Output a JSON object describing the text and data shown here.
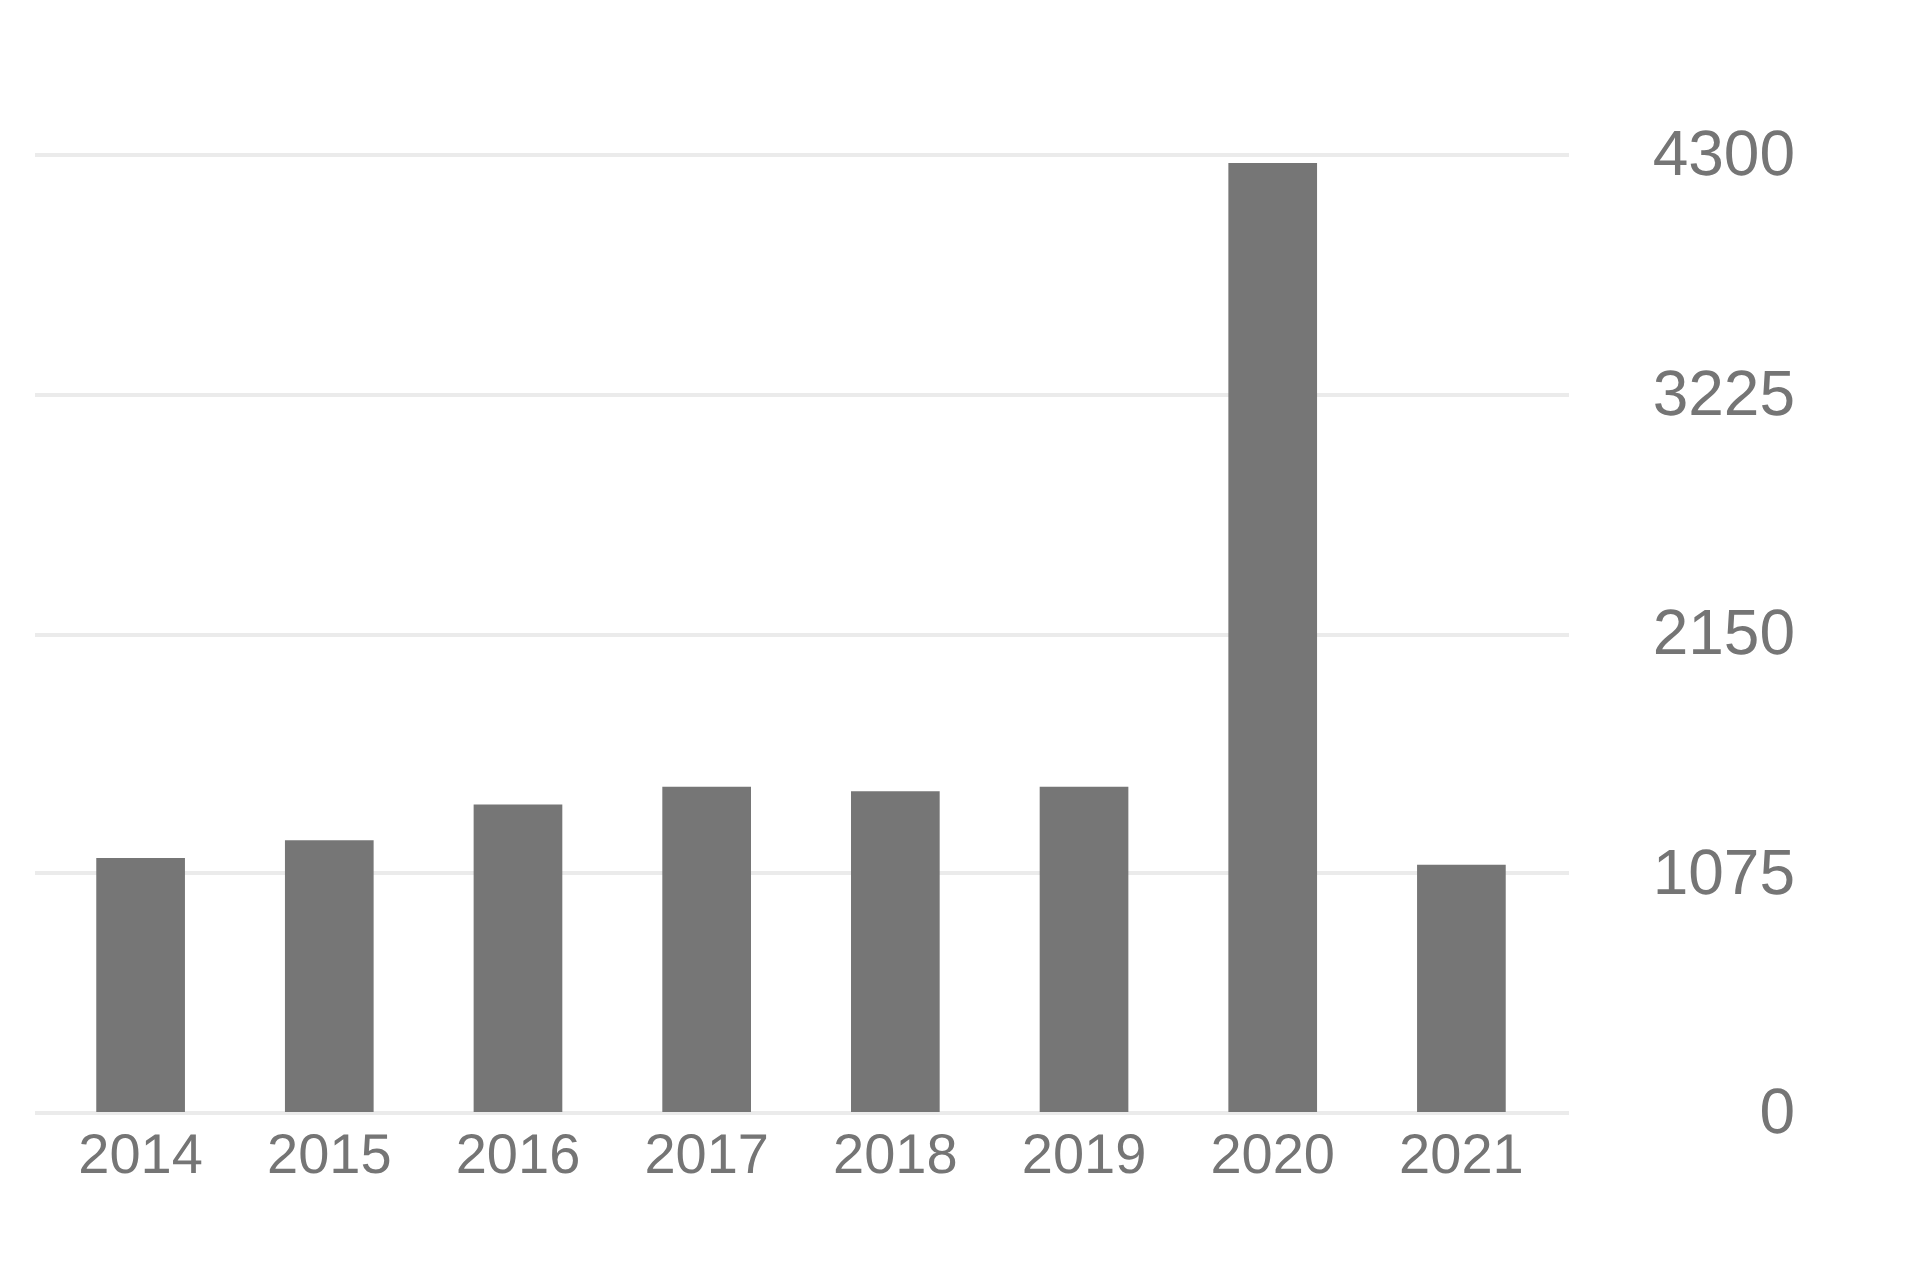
{
  "chart_data": {
    "type": "bar",
    "categories": [
      "2014",
      "2015",
      "2016",
      "2017",
      "2018",
      "2019",
      "2020",
      "2021"
    ],
    "values": [
      1140,
      1220,
      1380,
      1460,
      1440,
      1460,
      4260,
      1110
    ],
    "color": "#767676",
    "ylim": [
      0,
      4300
    ],
    "yticks": [
      0,
      1075,
      2150,
      3225,
      4300
    ],
    "grid": "y"
  }
}
